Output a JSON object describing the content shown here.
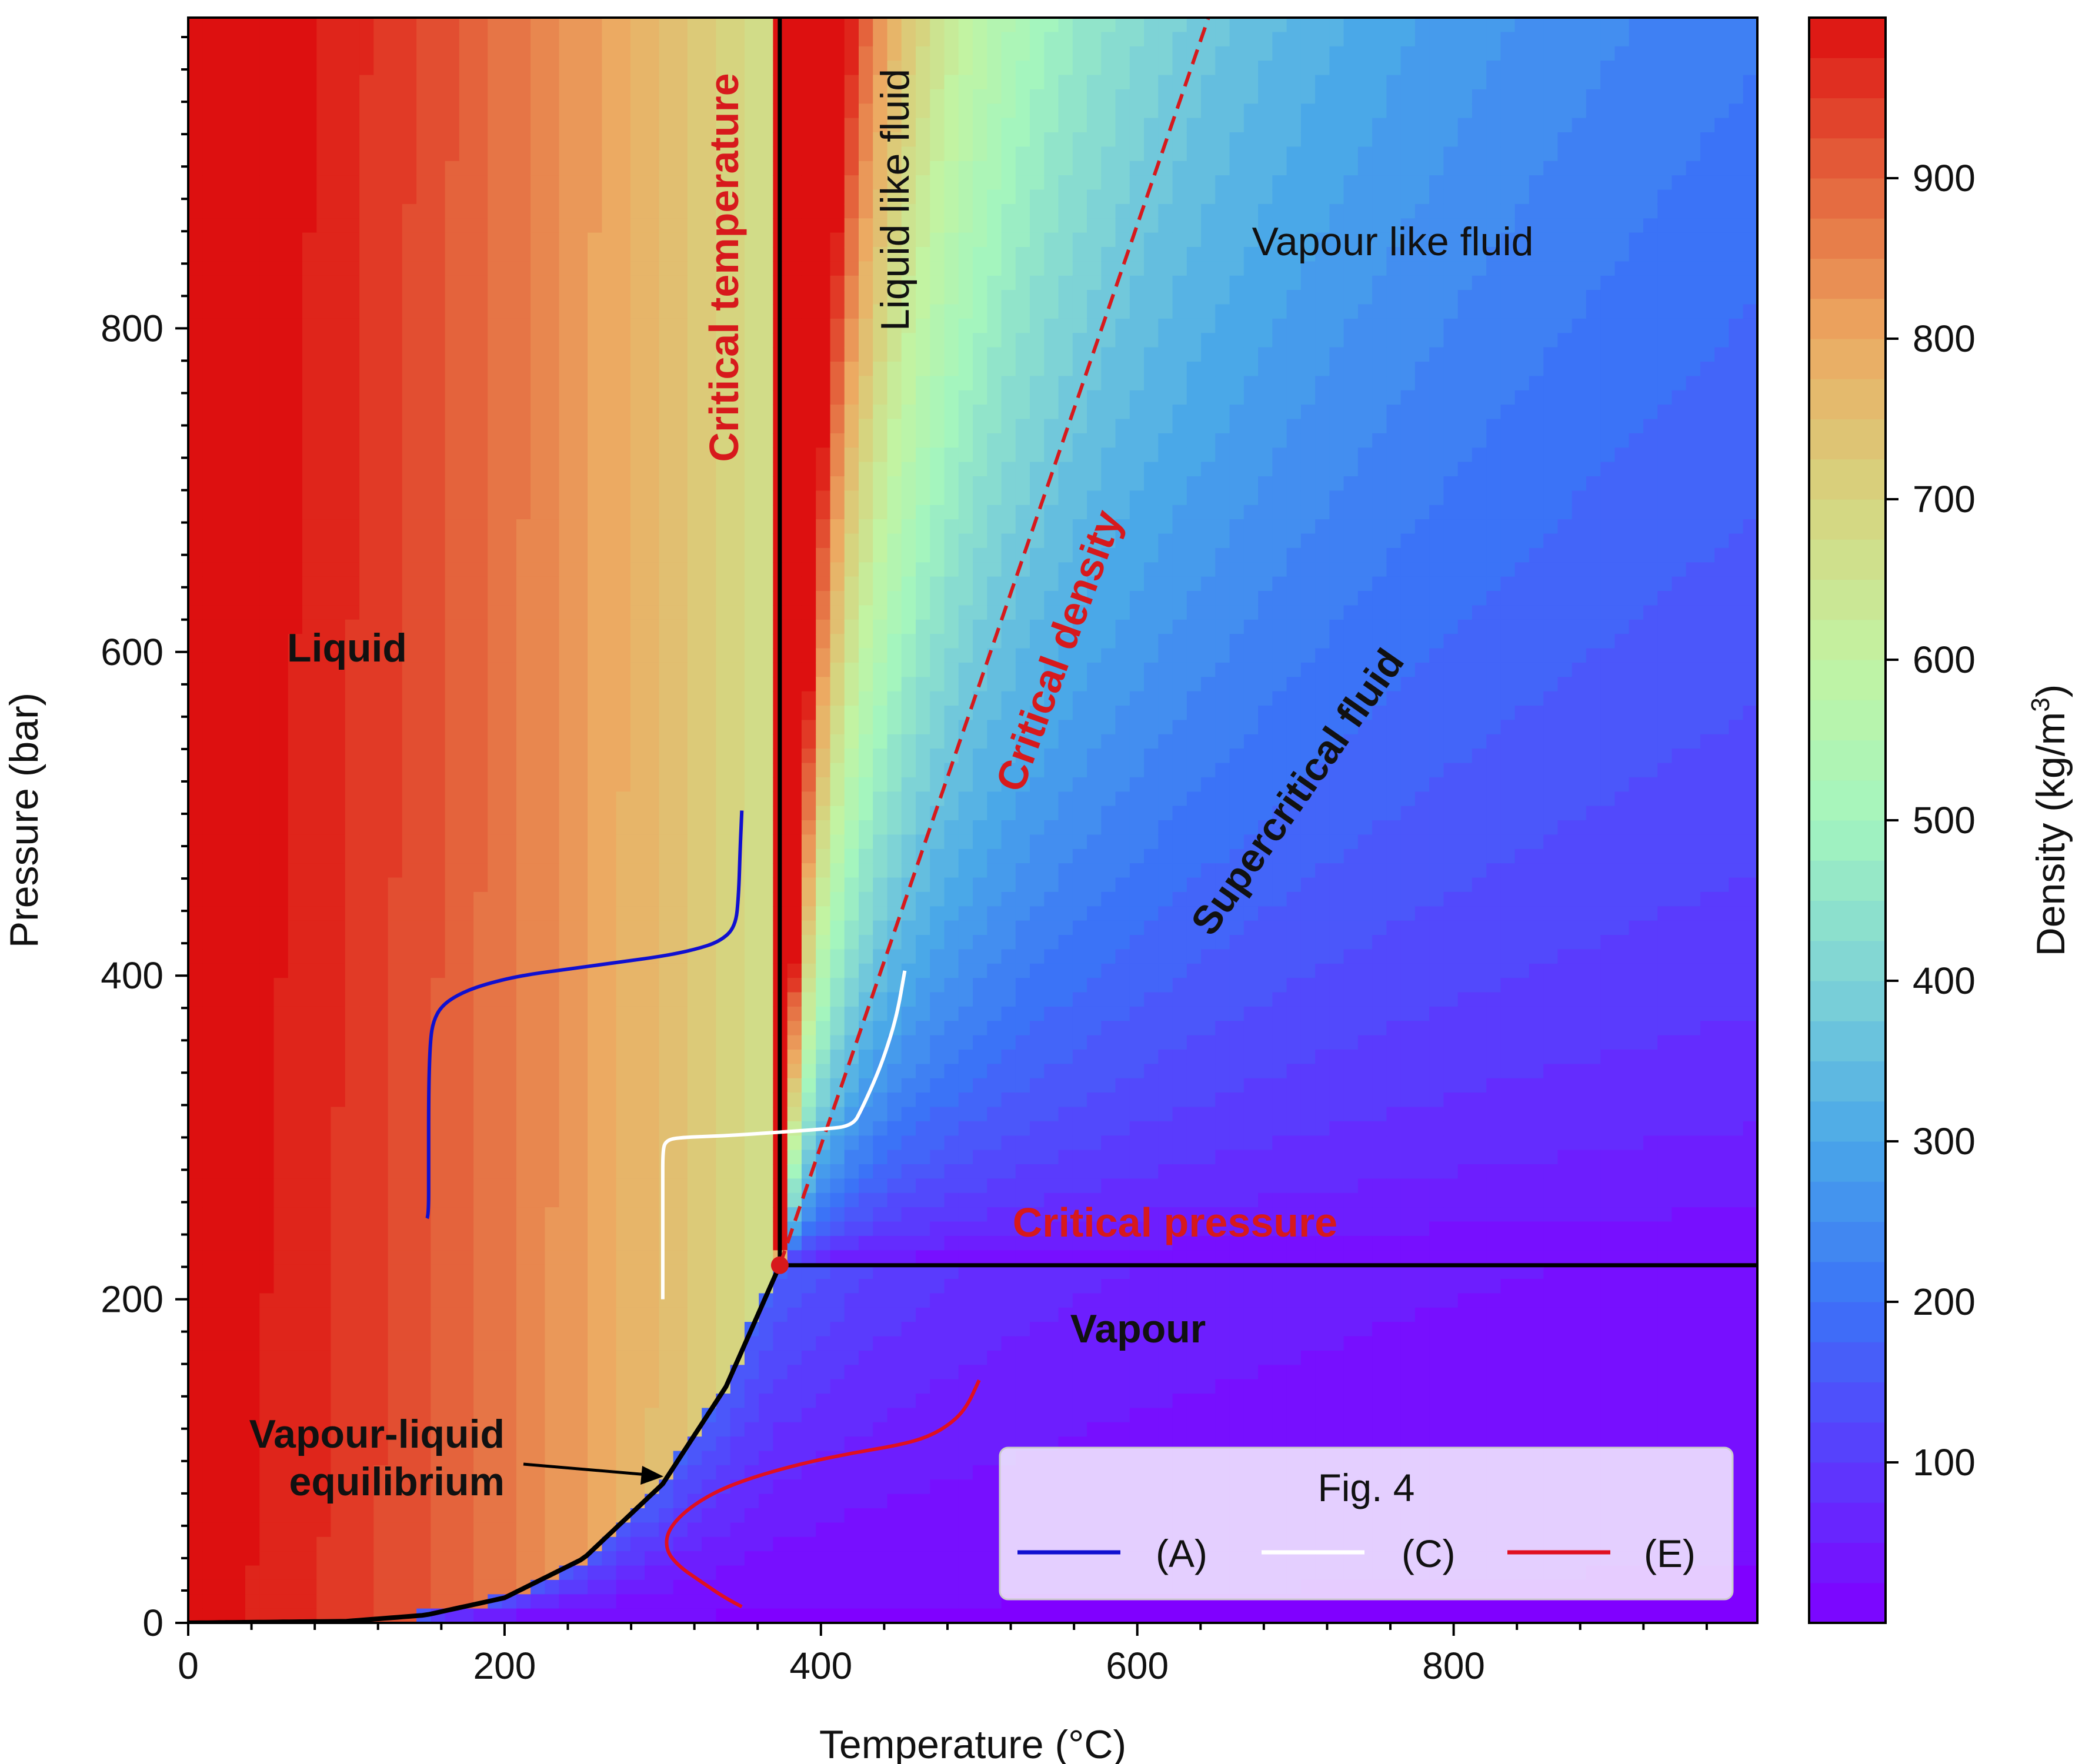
{
  "chart_data": {
    "type": "contour",
    "xlabel": "Temperature (°C)",
    "ylabel": "Pressure (bar)",
    "xlim": [
      0,
      992
    ],
    "ylim": [
      0,
      992
    ],
    "x_ticks": [
      0,
      200,
      400,
      600,
      800
    ],
    "y_ticks": [
      0,
      200,
      400,
      600,
      800
    ],
    "colorbar": {
      "label": "Density (kg/m3)",
      "label_main": "Density (kg/m",
      "label_sup": "3",
      "label_end": ")",
      "range": [
        0,
        1000
      ],
      "ticks": [
        100,
        200,
        300,
        400,
        500,
        600,
        700,
        800,
        900
      ],
      "colormap": "rainbow"
    },
    "critical_point": {
      "x": 374,
      "y": 221
    },
    "critical_density_line": [
      [
        374,
        221
      ],
      [
        645,
        992
      ]
    ],
    "vle_curve": [
      [
        0,
        0
      ],
      [
        100,
        1
      ],
      [
        150,
        4.8
      ],
      [
        200,
        15.5
      ],
      [
        250,
        39.8
      ],
      [
        300,
        85.9
      ],
      [
        340,
        146
      ],
      [
        374,
        221
      ]
    ],
    "series": [
      {
        "name": "(A)",
        "color": "#1010d0",
        "points": [
          [
            151,
            250
          ],
          [
            152,
            252
          ],
          [
            152,
            280
          ],
          [
            152,
            330
          ],
          [
            153,
            360
          ],
          [
            155,
            372
          ],
          [
            160,
            381
          ],
          [
            170,
            388
          ],
          [
            185,
            394
          ],
          [
            210,
            400
          ],
          [
            240,
            404
          ],
          [
            270,
            408
          ],
          [
            300,
            412
          ],
          [
            320,
            416
          ],
          [
            336,
            421
          ],
          [
            346,
            430
          ],
          [
            348,
            450
          ],
          [
            349,
            480
          ],
          [
            350,
            502
          ]
        ]
      },
      {
        "name": "(C)",
        "color": "#ffffff",
        "points": [
          [
            300,
            200
          ],
          [
            300,
            240
          ],
          [
            300,
            270
          ],
          [
            300,
            292
          ],
          [
            302,
            298
          ],
          [
            310,
            300
          ],
          [
            340,
            301
          ],
          [
            370,
            303
          ],
          [
            400,
            305
          ],
          [
            420,
            307
          ],
          [
            426,
            318
          ],
          [
            433,
            333
          ],
          [
            440,
            350
          ],
          [
            448,
            375
          ],
          [
            453,
            403
          ]
        ]
      },
      {
        "name": "(E)",
        "color": "#e01020",
        "points": [
          [
            350,
            10
          ],
          [
            340,
            15
          ],
          [
            325,
            25
          ],
          [
            310,
            35
          ],
          [
            302,
            45
          ],
          [
            303,
            57
          ],
          [
            315,
            70
          ],
          [
            335,
            82
          ],
          [
            360,
            91
          ],
          [
            390,
            99
          ],
          [
            420,
            105
          ],
          [
            450,
            110
          ],
          [
            468,
            115
          ],
          [
            482,
            123
          ],
          [
            492,
            133
          ],
          [
            500,
            150
          ]
        ]
      }
    ],
    "annotations": [
      {
        "text": "Liquid",
        "x": 100,
        "y": 600
      },
      {
        "text": "Critical temperature",
        "x": 338,
        "y": 690
      },
      {
        "text": "Liquid like fluid",
        "x": 450,
        "y": 870
      },
      {
        "text": "Vapour like fluid",
        "x": 760,
        "y": 852
      },
      {
        "text": "Critical density",
        "x": 540,
        "y": 600
      },
      {
        "text": "Supercritical fluid",
        "x": 735,
        "y": 490
      },
      {
        "text": "Critical pressure",
        "x": 622,
        "y": 246
      },
      {
        "text": "Vapour",
        "x": 598,
        "y": 182
      },
      {
        "text": "Vapour-liquid",
        "x": 100,
        "y": 117
      },
      {
        "text": "equilibrium",
        "x": 100,
        "y": 83
      }
    ],
    "legend": {
      "title": "Fig. 4",
      "placement": "lower-right",
      "entries": [
        "(A)",
        "(C)",
        "(E)"
      ]
    }
  }
}
